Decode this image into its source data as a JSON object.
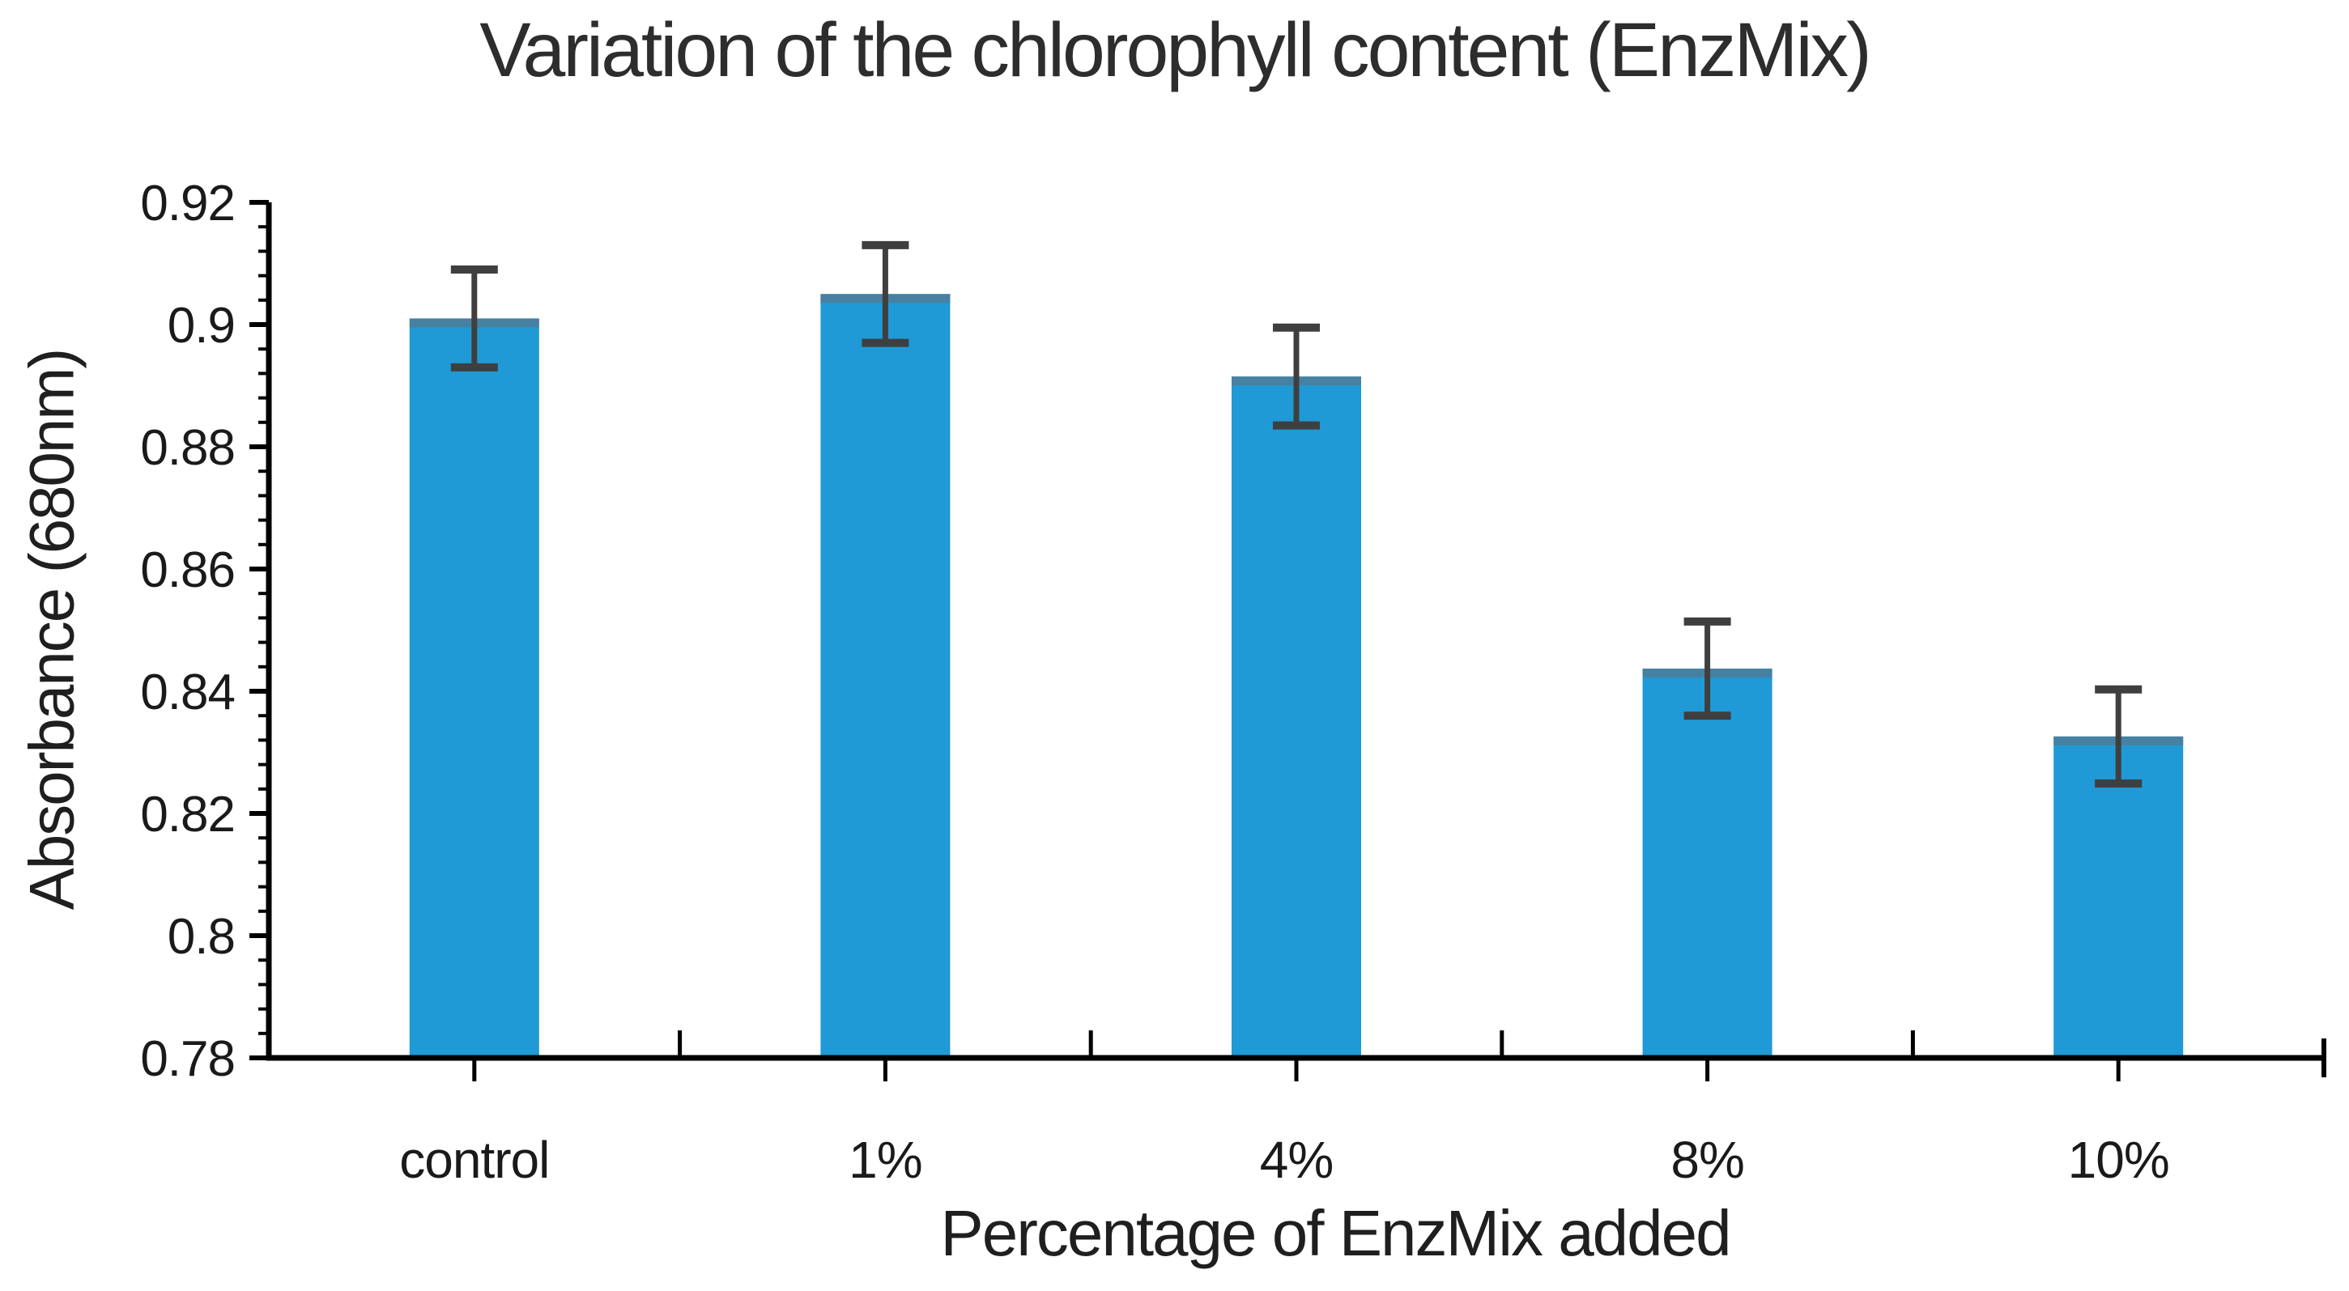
{
  "chart_data": {
    "type": "bar",
    "title": "Variation of the chlorophyll content (EnzMix)",
    "xlabel": "Percentage of EnzMix added",
    "ylabel": "Absorbance (680nm)",
    "categories": [
      "control",
      "1%",
      "4%",
      "8%",
      "10%"
    ],
    "values": [
      0.901,
      0.905,
      0.8915,
      0.8437,
      0.8326
    ],
    "error_bars": [
      0.008,
      0.008,
      0.008,
      0.0077,
      0.0077
    ],
    "ylim": [
      0.78,
      0.92
    ],
    "ytick_step": 0.02,
    "ytick_labels": [
      "0.78",
      "0.8",
      "0.82",
      "0.84",
      "0.86",
      "0.88",
      "0.9",
      "0.92"
    ],
    "minor_per_major": 5,
    "grid": false,
    "legend": null
  },
  "colors": {
    "bar": "#1f9ad6",
    "bar_top_edge": "#517a93",
    "error": "#3f3f3f",
    "axis": "#000000",
    "tick_text": "#1a1a1a",
    "title_text": "#2d2d2d"
  }
}
